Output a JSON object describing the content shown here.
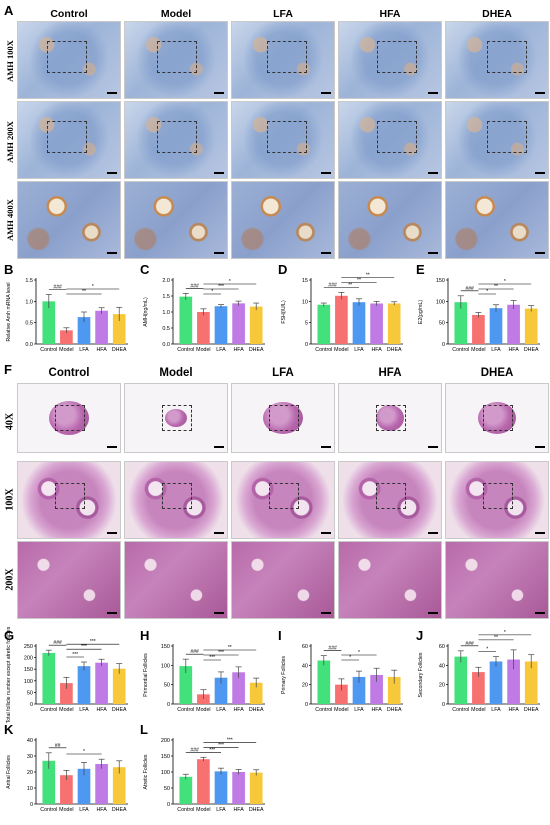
{
  "groups": [
    "Control",
    "Model",
    "LFA",
    "HFA",
    "DHEA"
  ],
  "colors": {
    "Control": "#43e17b",
    "Model": "#f87171",
    "LFA": "#4e98f2",
    "HFA": "#c07ae5",
    "DHEA": "#f7c93a"
  },
  "ihc_rows": [
    "AMH 100X",
    "AMH 200X",
    "AMH 400X"
  ],
  "he_rows": [
    "40X",
    "100X",
    "200X"
  ],
  "letters": {
    "A": "A",
    "B": "B",
    "C": "C",
    "D": "D",
    "E": "E",
    "F": "F",
    "G": "G",
    "H": "H",
    "I": "I",
    "J": "J",
    "K": "K",
    "L": "L"
  },
  "chart_data": [
    {
      "id": "B",
      "type": "bar",
      "categories": [
        "Control",
        "Model",
        "LFA",
        "HFA",
        "DHEA"
      ],
      "values": [
        1.0,
        0.32,
        0.63,
        0.78,
        0.7
      ],
      "errors": [
        0.16,
        0.06,
        0.12,
        0.07,
        0.16
      ],
      "ylabel": "Relative Amh mRNA level",
      "ylim": [
        0,
        1.5
      ],
      "yticks": [
        "0.0",
        "0.5",
        "1.0",
        "1.5"
      ],
      "sig": [
        {
          "from": 0,
          "to": 1,
          "label": "###"
        },
        {
          "from": 1,
          "to": 3,
          "label": "**"
        },
        {
          "from": 1,
          "to": 4,
          "label": "*"
        }
      ]
    },
    {
      "id": "C",
      "type": "bar",
      "categories": [
        "Control",
        "Model",
        "LFA",
        "HFA",
        "DHEA"
      ],
      "values": [
        1.48,
        1.0,
        1.18,
        1.27,
        1.17
      ],
      "errors": [
        0.1,
        0.1,
        0.05,
        0.07,
        0.11
      ],
      "ylabel": "AMH(ng/mL)",
      "ylim": [
        0,
        2.0
      ],
      "yticks": [
        "0.0",
        "0.5",
        "1.0",
        "1.5",
        "2.0"
      ],
      "sig": [
        {
          "from": 0,
          "to": 1,
          "label": "###"
        },
        {
          "from": 1,
          "to": 2,
          "label": "*"
        },
        {
          "from": 1,
          "to": 3,
          "label": "***"
        },
        {
          "from": 1,
          "to": 4,
          "label": "*"
        }
      ]
    },
    {
      "id": "D",
      "type": "bar",
      "categories": [
        "Control",
        "Model",
        "LFA",
        "HFA",
        "DHEA"
      ],
      "values": [
        9.2,
        11.3,
        9.8,
        9.5,
        9.5
      ],
      "errors": [
        0.4,
        0.8,
        0.8,
        0.5,
        0.4
      ],
      "ylabel": "FSH(IU/L)",
      "ylim": [
        0,
        15
      ],
      "yticks": [
        "0",
        "5",
        "10",
        "15"
      ],
      "sig": [
        {
          "from": 0,
          "to": 1,
          "label": "###"
        },
        {
          "from": 1,
          "to": 2,
          "label": "**"
        },
        {
          "from": 1,
          "to": 3,
          "label": "**"
        },
        {
          "from": 1,
          "to": 4,
          "label": "**"
        }
      ]
    },
    {
      "id": "E",
      "type": "bar",
      "categories": [
        "Control",
        "Model",
        "LFA",
        "HFA",
        "DHEA"
      ],
      "values": [
        98,
        68,
        84,
        92,
        83
      ],
      "errors": [
        15,
        6,
        8,
        10,
        7
      ],
      "ylabel": "E2(pg/mL)",
      "ylim": [
        0,
        150
      ],
      "yticks": [
        "0",
        "50",
        "100",
        "150"
      ],
      "sig": [
        {
          "from": 0,
          "to": 1,
          "label": "###"
        },
        {
          "from": 1,
          "to": 2,
          "label": "*"
        },
        {
          "from": 1,
          "to": 3,
          "label": "**"
        },
        {
          "from": 1,
          "to": 4,
          "label": "*"
        }
      ]
    },
    {
      "id": "G",
      "type": "bar",
      "categories": [
        "Control",
        "Model",
        "LFA",
        "HFA",
        "DHEA"
      ],
      "values": [
        220,
        90,
        163,
        178,
        152
      ],
      "errors": [
        12,
        25,
        18,
        15,
        22
      ],
      "ylabel": "Total follicle number except atretic follicles",
      "ylim": [
        0,
        250
      ],
      "yticks": [
        "0",
        "50",
        "100",
        "150",
        "200",
        "250"
      ],
      "sig": [
        {
          "from": 0,
          "to": 1,
          "label": "###"
        },
        {
          "from": 1,
          "to": 2,
          "label": "***"
        },
        {
          "from": 1,
          "to": 3,
          "label": "***"
        },
        {
          "from": 1,
          "to": 4,
          "label": "***"
        }
      ]
    },
    {
      "id": "H",
      "type": "bar",
      "categories": [
        "Control",
        "Model",
        "LFA",
        "HFA",
        "DHEA"
      ],
      "values": [
        98,
        25,
        68,
        82,
        55
      ],
      "errors": [
        18,
        12,
        15,
        14,
        12
      ],
      "ylabel": "Primordial Follicles",
      "ylim": [
        0,
        150
      ],
      "yticks": [
        "0",
        "50",
        "100",
        "150"
      ],
      "sig": [
        {
          "from": 0,
          "to": 1,
          "label": "###"
        },
        {
          "from": 1,
          "to": 2,
          "label": "***"
        },
        {
          "from": 1,
          "to": 3,
          "label": "***"
        },
        {
          "from": 1,
          "to": 4,
          "label": "**"
        }
      ]
    },
    {
      "id": "I",
      "type": "bar",
      "categories": [
        "Control",
        "Model",
        "LFA",
        "HFA",
        "DHEA"
      ],
      "values": [
        45,
        20,
        28,
        30,
        28
      ],
      "errors": [
        5,
        6,
        6,
        7,
        7
      ],
      "ylabel": "Primary Follicles",
      "ylim": [
        0,
        60
      ],
      "yticks": [
        "0",
        "20",
        "40",
        "60"
      ],
      "sig": [
        {
          "from": 0,
          "to": 1,
          "label": "###"
        },
        {
          "from": 1,
          "to": 2,
          "label": "*"
        },
        {
          "from": 1,
          "to": 3,
          "label": "*"
        }
      ]
    },
    {
      "id": "J",
      "type": "bar",
      "categories": [
        "Control",
        "Model",
        "LFA",
        "HFA",
        "DHEA"
      ],
      "values": [
        49,
        33,
        44,
        46,
        44
      ],
      "errors": [
        6,
        5,
        5,
        10,
        7
      ],
      "ylabel": "Secondary Follicles",
      "ylim": [
        0,
        60
      ],
      "yticks": [
        "0",
        "20",
        "40",
        "60"
      ],
      "sig": [
        {
          "from": 0,
          "to": 1,
          "label": "###"
        },
        {
          "from": 1,
          "to": 2,
          "label": "*"
        },
        {
          "from": 1,
          "to": 3,
          "label": "**"
        },
        {
          "from": 1,
          "to": 4,
          "label": "*"
        }
      ]
    },
    {
      "id": "K",
      "type": "bar",
      "categories": [
        "Control",
        "Model",
        "LFA",
        "HFA",
        "DHEA"
      ],
      "values": [
        27,
        18,
        22,
        25,
        23
      ],
      "errors": [
        5,
        3,
        4,
        3,
        4
      ],
      "ylabel": "Antral Follicles",
      "ylim": [
        0,
        40
      ],
      "yticks": [
        "0",
        "10",
        "20",
        "30",
        "40"
      ],
      "sig": [
        {
          "from": 0,
          "to": 1,
          "label": "##"
        },
        {
          "from": 1,
          "to": 3,
          "label": "*"
        }
      ]
    },
    {
      "id": "L",
      "type": "bar",
      "categories": [
        "Control",
        "Model",
        "LFA",
        "HFA",
        "DHEA"
      ],
      "values": [
        85,
        140,
        102,
        100,
        98
      ],
      "errors": [
        8,
        6,
        10,
        8,
        9
      ],
      "ylabel": "Atretic Follicles",
      "ylim": [
        0,
        200
      ],
      "yticks": [
        "0",
        "50",
        "100",
        "150",
        "200"
      ],
      "sig": [
        {
          "from": 0,
          "to": 1,
          "label": "###"
        },
        {
          "from": 1,
          "to": 2,
          "label": "***"
        },
        {
          "from": 1,
          "to": 3,
          "label": "***"
        },
        {
          "from": 1,
          "to": 4,
          "label": "***"
        }
      ]
    }
  ]
}
